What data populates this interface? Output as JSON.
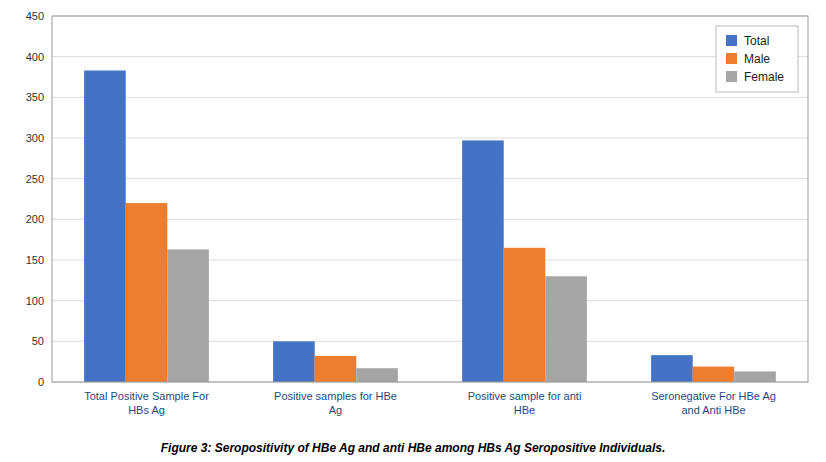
{
  "chart_data": {
    "type": "bar",
    "title": "Figure 3: Seropositivity of HBe Ag and anti HBe among HBs Ag Seropositive Individuals.",
    "categories": [
      "Total Positive Sample For\nHBs Ag",
      "Positive samples for HBe\nAg",
      "Positive sample for anti\nHBe",
      "Seronegative For HBe Ag\nand Anti HBe"
    ],
    "series": [
      {
        "name": "Total",
        "color": "#4472C4",
        "values": [
          383,
          50,
          297,
          33
        ]
      },
      {
        "name": "Male",
        "color": "#ED7D31",
        "values": [
          220,
          32,
          165,
          19
        ]
      },
      {
        "name": "Female",
        "color": "#A5A5A5",
        "values": [
          163,
          17,
          130,
          13
        ]
      }
    ],
    "ylim": [
      0,
      450
    ],
    "yticks": [
      0,
      50,
      100,
      150,
      200,
      250,
      300,
      350,
      400,
      450
    ],
    "grid": true,
    "legend": "upper right"
  }
}
